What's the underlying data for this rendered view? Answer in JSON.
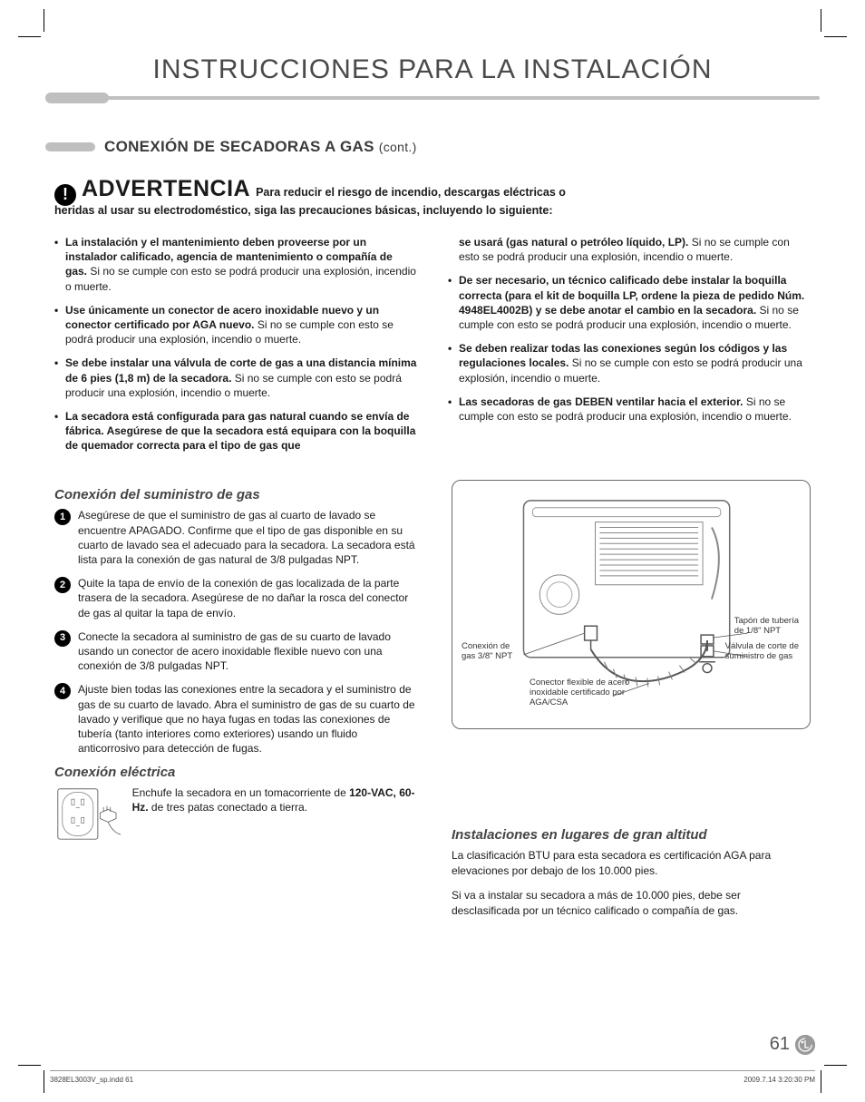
{
  "doc_title": "INSTRUCCIONES PARA LA INSTALACIÓN",
  "section": {
    "title": "CONEXIÓN DE SECADORAS A GAS",
    "cont": "(cont.)"
  },
  "warning": {
    "icon_glyph": "!",
    "word": "ADVERTENCIA",
    "lead": "Para reducir el riesgo de incendio, descargas eléctricas o",
    "lead2": "heridas al usar su electrodoméstico, siga las precauciones básicas, incluyendo lo siguiente:"
  },
  "bullets_left": [
    {
      "b": "La instalación y el mantenimiento deben proveerse por un instalador calificado, agencia de mantenimiento o compañía de gas.",
      "t": " Si no se cumple con esto se podrá producir una explosión, incendio o muerte."
    },
    {
      "b": "Use únicamente un conector de acero inoxidable nuevo y un conector certificado por AGA nuevo.",
      "t": " Si no se cumple con esto se podrá producir una explosión, incendio o muerte."
    },
    {
      "b": "Se debe instalar una válvula de corte de gas a una distancia mínima de 6 pies (1,8 m) de la secadora.",
      "t": " Si no se cumple con esto se podrá producir una explosión, incendio o muerte."
    },
    {
      "b": "La secadora está configurada para gas natural cuando se envía de fábrica. Asegúrese de que la secadora está equipara con la boquilla de quemador correcta para el tipo de gas que",
      "t": ""
    }
  ],
  "bullets_right_first": {
    "b": "se usará (gas natural o petróleo líquido, LP).",
    "t": " Si no se cumple con esto se podrá producir una explosión, incendio o muerte."
  },
  "bullets_right": [
    {
      "b": "De ser necesario, un técnico calificado debe instalar la boquilla correcta (para el kit de boquilla LP, ordene la pieza de pedido Núm. 4948EL4002B) y se debe anotar el cambio en la secadora.",
      "t": " Si no se cumple con esto se podrá producir una explosión, incendio o muerte."
    },
    {
      "b": "Se deben realizar todas las conexiones según los códigos y las regulaciones locales.",
      "t": " Si no se cumple con esto se podrá producir una explosión, incendio o muerte."
    },
    {
      "b": "Las secadoras de gas DEBEN ventilar hacia el exterior.",
      "t": " Si no se cumple con esto se podrá producir una explosión, incendio o muerte."
    }
  ],
  "gas_supply": {
    "title": "Conexión del suministro de gas",
    "steps": [
      "Asegúrese de que el suministro de gas al cuarto de lavado se encuentre APAGADO. Confirme que el tipo de gas disponible en su cuarto de lavado sea el adecuado para la secadora. La secadora está lista para la conexión de gas natural de 3/8 pulgadas NPT.",
      "Quite la tapa de envío de la conexión de gas localizada de la parte trasera de la secadora. Asegúrese de no dañar la rosca del conector de gas al quitar la tapa de envío.",
      "Conecte la secadora al suministro de gas de su cuarto de lavado usando un conector de acero inoxidable flexible nuevo con una conexión de 3/8 pulgadas NPT.",
      "Ajuste bien todas las conexiones entre la secadora y el suministro de gas de su cuarto de lavado. Abra el suministro de gas de su cuarto de lavado y verifique que no haya fugas en todas las conexiones de tubería (tanto interiores como exteriores) usando un fluido anticorrosivo para detección de fugas."
    ]
  },
  "diagram_labels": {
    "gas_conn": "Conexión de\ngas 3/8\" NPT",
    "pipe_plug": "Tapón de tubería\nde 1/8\" NPT",
    "shutoff": "Válvula de corte de\nsuministro de gas",
    "flex": "Conector flexible de acero\ninoxidable certificado por\nAGA/CSA"
  },
  "electrical": {
    "title": "Conexión eléctrica",
    "text_pre": "Enchufe la secadora en un tomacorriente de ",
    "text_bold": "120-VAC, 60-Hz.",
    "text_post": " de tres patas conectado a tierra."
  },
  "altitude": {
    "title": "Instalaciones en lugares de gran altitud",
    "p1": "La clasificación BTU para esta secadora es certificación AGA para elevaciones por debajo de los 10.000 pies.",
    "p2": "Si va a instalar su secadora a más de 10.000 pies, debe ser desclasificada por un técnico calificado o compañía de gas."
  },
  "page_number": "61",
  "footer": {
    "left": "3828EL3003V_sp.indd   61",
    "right": "2009.7.14   3:20:30 PM"
  },
  "colors": {
    "rule_gray": "#bfbfbf",
    "text_gray": "#4a4a4a",
    "step_circle": "#000000"
  }
}
